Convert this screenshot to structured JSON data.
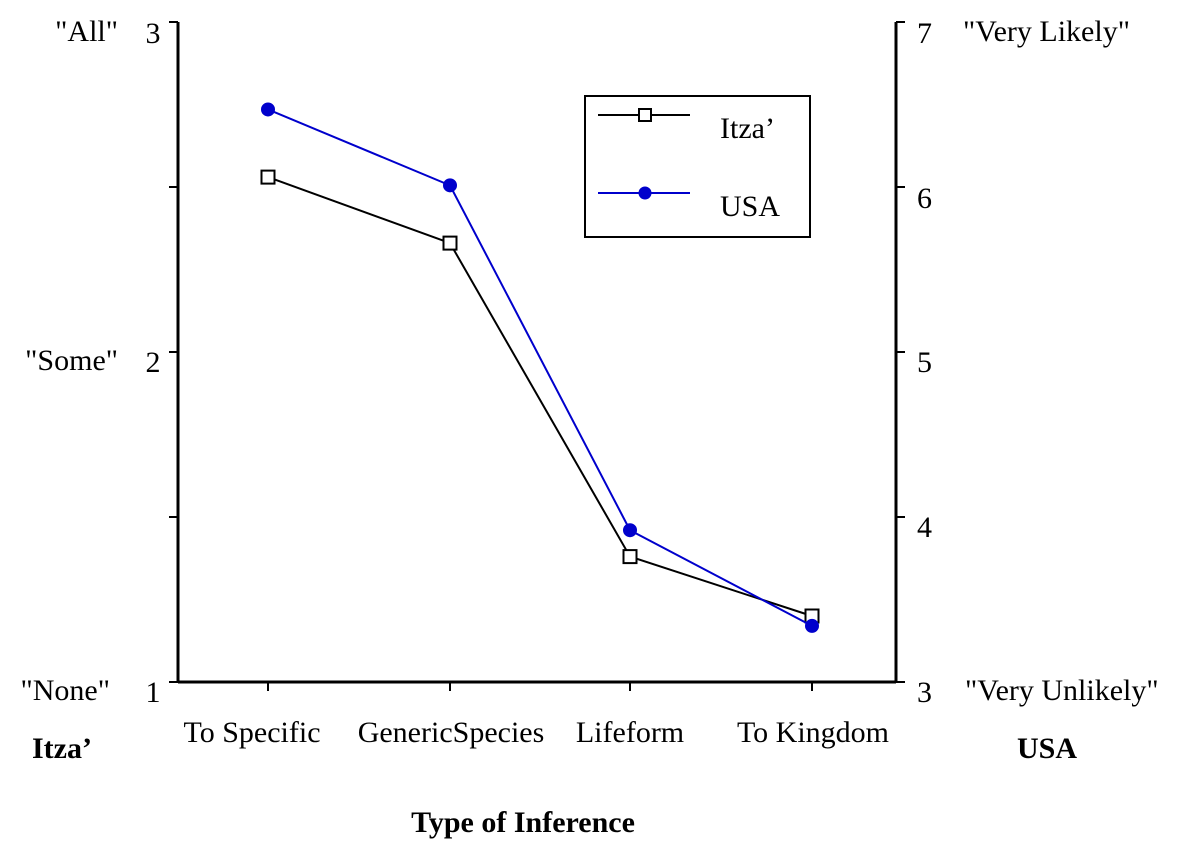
{
  "chart_data": {
    "type": "line",
    "xlabel": "Type of Inference",
    "categories": [
      "To Specific",
      "GenericSpecies",
      "Lifeform",
      "To Kingdom"
    ],
    "y_left": {
      "title": "Itza’",
      "range": [
        1,
        3
      ],
      "ticks": [
        "1",
        "2",
        "3"
      ],
      "anchors": [
        "\"None\"",
        "\"Some\"",
        "\"All\""
      ]
    },
    "y_right": {
      "title": "USA",
      "range": [
        3,
        7
      ],
      "ticks": [
        "3",
        "4",
        "5",
        "6",
        "7"
      ],
      "anchors": [
        "\"Very Unlikely\"",
        "\"Very Likely\""
      ]
    },
    "series": [
      {
        "name": "Itza’",
        "axis": "left",
        "color": "#000000",
        "marker": "open-square",
        "values": [
          2.53,
          2.33,
          1.38,
          1.2
        ]
      },
      {
        "name": "USA",
        "axis": "right",
        "color": "#0000cc",
        "marker": "filled-circle",
        "values": [
          6.47,
          6.01,
          3.92,
          3.34
        ]
      }
    ],
    "legend_position": "top-right",
    "grid": false
  }
}
